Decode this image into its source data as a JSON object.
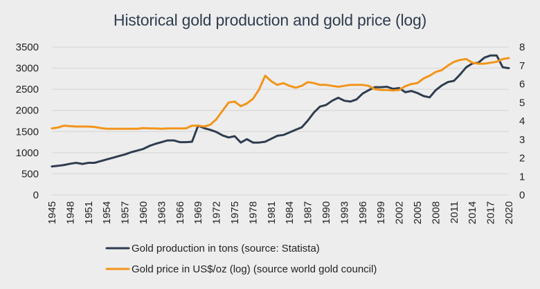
{
  "chart_data": {
    "type": "line",
    "title": "Historical gold production and gold price (log)",
    "xlabel": "",
    "ylabel": "",
    "y2label": "",
    "xlim": [
      1945,
      2020
    ],
    "ylim": [
      0,
      3500
    ],
    "y2lim": [
      0,
      8
    ],
    "x_ticks": [
      1945,
      1948,
      1951,
      1954,
      1957,
      1960,
      1963,
      1966,
      1969,
      1972,
      1975,
      1978,
      1981,
      1984,
      1987,
      1990,
      1993,
      1996,
      1999,
      2002,
      2005,
      2008,
      2011,
      2014,
      2017,
      2020
    ],
    "y_ticks": [
      0,
      500,
      1000,
      1500,
      2000,
      2500,
      3000,
      3500
    ],
    "y2_ticks": [
      0,
      1,
      2,
      3,
      4,
      5,
      6,
      7,
      8
    ],
    "grid": "horizontal",
    "legend_position": "bottom",
    "x": [
      1945,
      1946,
      1947,
      1948,
      1949,
      1950,
      1951,
      1952,
      1953,
      1954,
      1955,
      1956,
      1957,
      1958,
      1959,
      1960,
      1961,
      1962,
      1963,
      1964,
      1965,
      1966,
      1967,
      1968,
      1969,
      1970,
      1971,
      1972,
      1973,
      1974,
      1975,
      1976,
      1977,
      1978,
      1979,
      1980,
      1981,
      1982,
      1983,
      1984,
      1985,
      1986,
      1987,
      1988,
      1989,
      1990,
      1991,
      1992,
      1993,
      1994,
      1995,
      1996,
      1997,
      1998,
      1999,
      2000,
      2001,
      2002,
      2003,
      2004,
      2005,
      2006,
      2007,
      2008,
      2009,
      2010,
      2011,
      2012,
      2013,
      2014,
      2015,
      2016,
      2017,
      2018,
      2019,
      2020
    ],
    "series": [
      {
        "name": "Gold production in tons (source: Statista)",
        "axis": "left",
        "color": "#2e3c4f",
        "values": [
          675,
          690,
          710,
          740,
          760,
          735,
          760,
          760,
          800,
          840,
          880,
          920,
          960,
          1010,
          1050,
          1090,
          1160,
          1210,
          1250,
          1290,
          1290,
          1250,
          1250,
          1260,
          1640,
          1580,
          1540,
          1490,
          1410,
          1360,
          1390,
          1240,
          1320,
          1240,
          1240,
          1260,
          1330,
          1400,
          1420,
          1480,
          1540,
          1600,
          1760,
          1950,
          2090,
          2130,
          2230,
          2300,
          2230,
          2210,
          2260,
          2400,
          2480,
          2550,
          2550,
          2560,
          2510,
          2530,
          2430,
          2460,
          2410,
          2340,
          2310,
          2480,
          2590,
          2670,
          2700,
          2850,
          3020,
          3110,
          3130,
          3250,
          3300,
          3300,
          3020,
          3000
        ]
      },
      {
        "name": "Gold price in US$/oz (log) (source world gold council)",
        "axis": "right",
        "color": "#f39419",
        "values": [
          3.6,
          3.65,
          3.75,
          3.72,
          3.7,
          3.7,
          3.7,
          3.68,
          3.62,
          3.58,
          3.58,
          3.58,
          3.58,
          3.58,
          3.58,
          3.62,
          3.6,
          3.6,
          3.58,
          3.6,
          3.6,
          3.6,
          3.6,
          3.75,
          3.75,
          3.7,
          3.8,
          4.1,
          4.55,
          5.0,
          5.05,
          4.8,
          4.95,
          5.2,
          5.7,
          6.45,
          6.15,
          5.95,
          6.05,
          5.9,
          5.8,
          5.9,
          6.1,
          6.05,
          5.95,
          5.95,
          5.9,
          5.85,
          5.9,
          5.95,
          5.95,
          5.95,
          5.9,
          5.72,
          5.68,
          5.68,
          5.65,
          5.68,
          5.88,
          6.0,
          6.05,
          6.3,
          6.45,
          6.65,
          6.75,
          7.0,
          7.2,
          7.3,
          7.35,
          7.15,
          7.1,
          7.1,
          7.15,
          7.2,
          7.35,
          7.4
        ]
      }
    ]
  }
}
